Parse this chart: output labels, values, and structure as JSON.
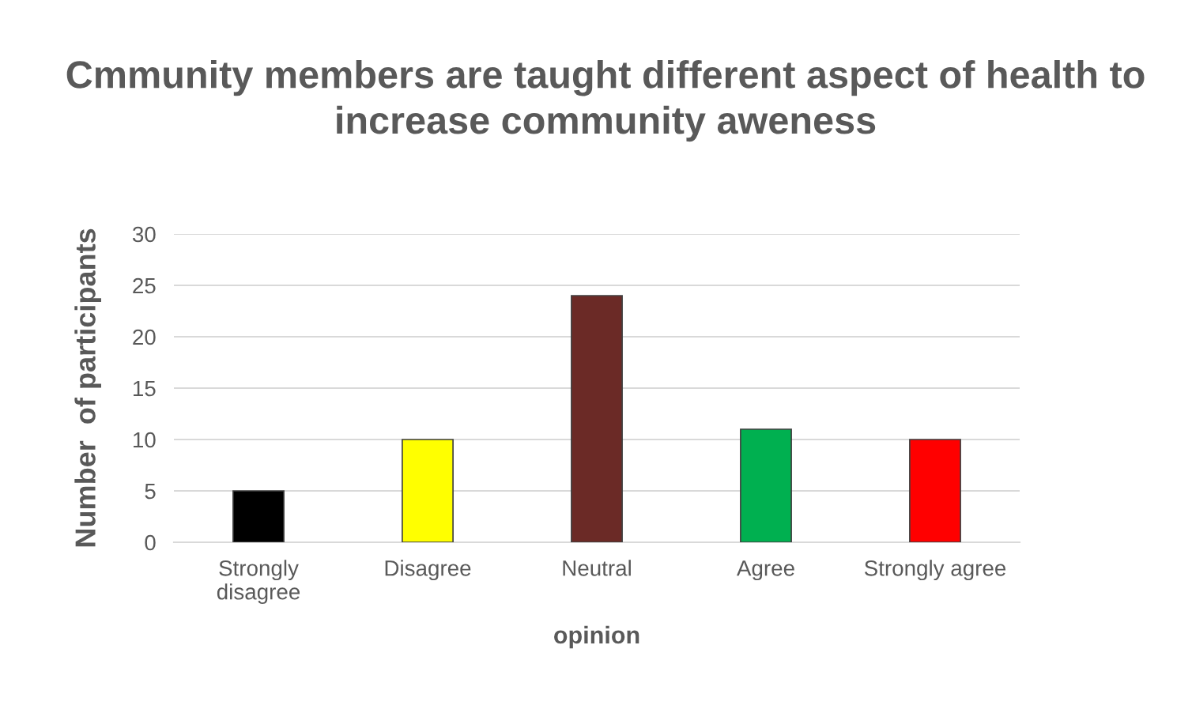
{
  "chart_data": {
    "type": "bar",
    "title": "Cmmunity members are taught different aspect of health to increase community aweness",
    "xlabel": "opinion",
    "ylabel": "Number  of participants",
    "categories": [
      "Strongly\ndisagree",
      "Disagree",
      "Neutral",
      "Agree",
      "Strongly agree"
    ],
    "values": [
      5,
      10,
      24,
      11,
      10
    ],
    "colors": [
      "#000000",
      "#ffff00",
      "#6b2a26",
      "#00b050",
      "#ff0000"
    ],
    "ylim": [
      0,
      30
    ],
    "yticks": [
      0,
      5,
      10,
      15,
      20,
      25,
      30
    ],
    "grid": "y",
    "legend": false
  }
}
